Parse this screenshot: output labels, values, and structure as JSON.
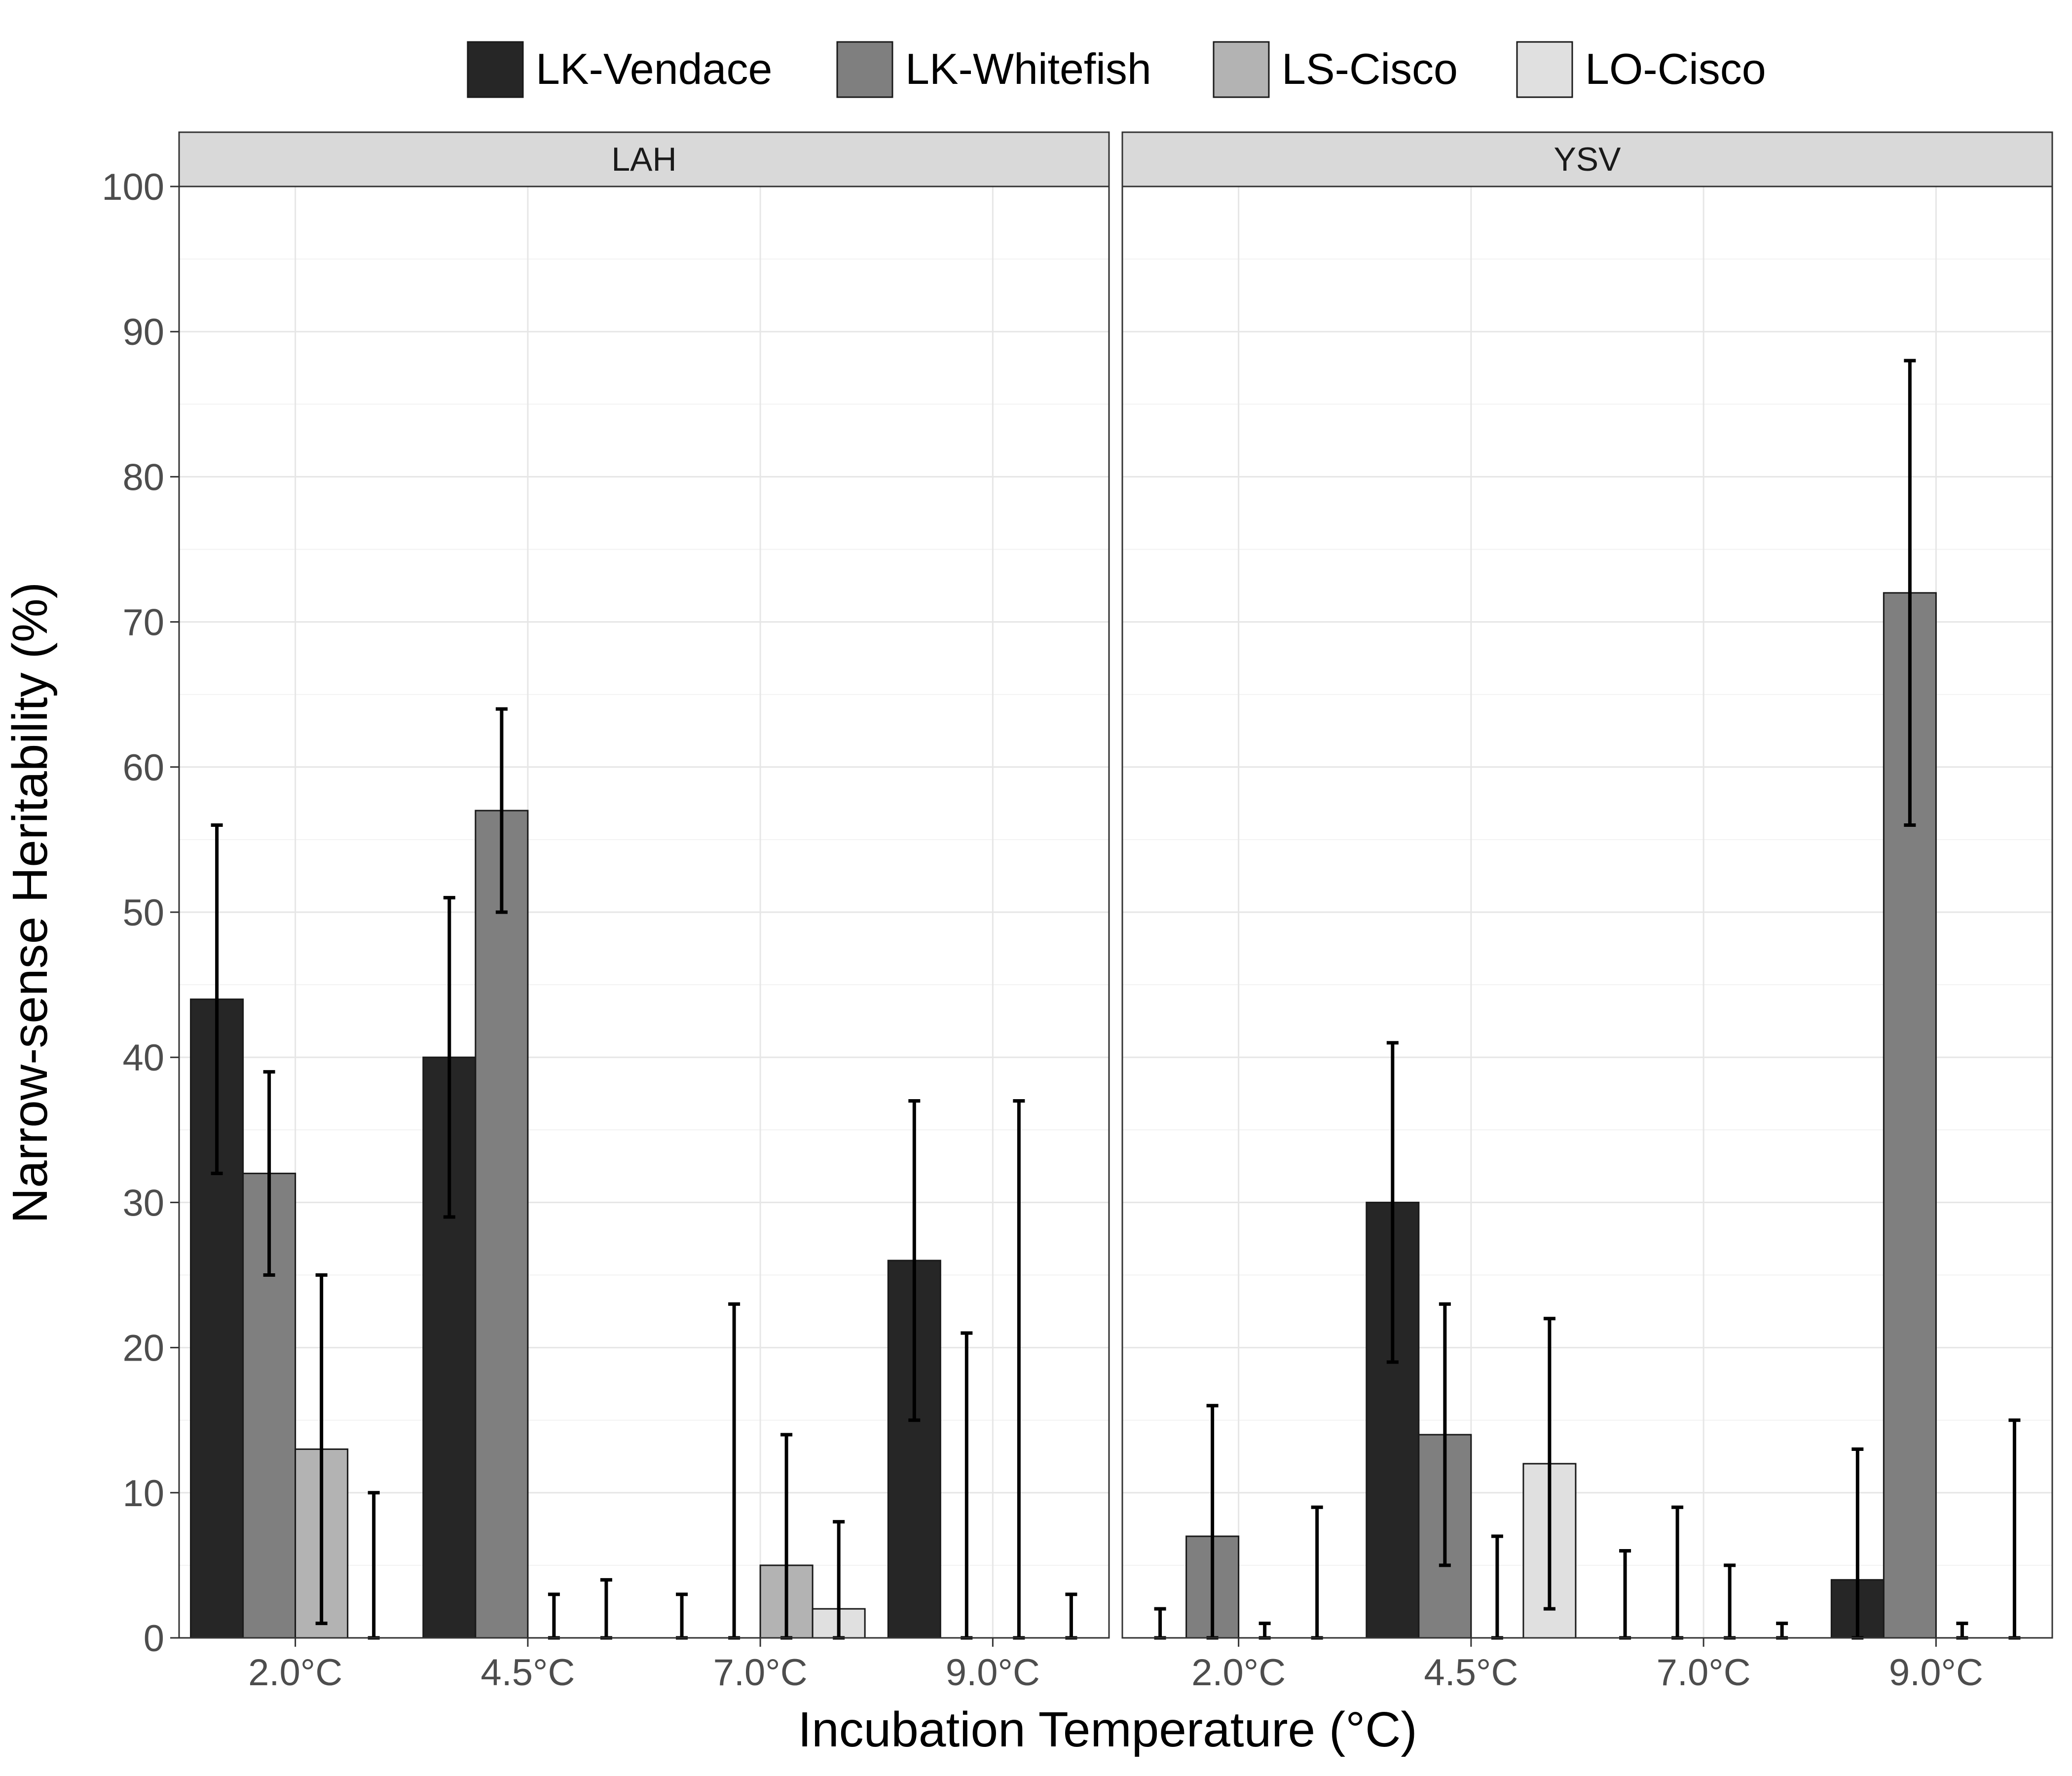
{
  "chart_data": {
    "type": "bar",
    "xlabel": "Incubation Temperature (°C)",
    "ylabel": "Narrow-sense Heritability (%)",
    "ylim": [
      0,
      100
    ],
    "yticks": [
      "0",
      "10",
      "20",
      "30",
      "40",
      "50",
      "60",
      "70",
      "80",
      "90",
      "100"
    ],
    "categories": [
      "2.0°C",
      "4.5°C",
      "7.0°C",
      "9.0°C"
    ],
    "legend_position": "top",
    "grid": true,
    "panels": [
      {
        "title": "LAH",
        "series": [
          {
            "name": "LK-Vendace",
            "color": "#262626",
            "values": [
              44,
              40,
              0,
              26
            ],
            "lower": [
              32,
              29,
              0,
              15
            ],
            "upper": [
              56,
              51,
              3,
              37
            ]
          },
          {
            "name": "LK-Whitefish",
            "color": "#7f7f7f",
            "values": [
              32,
              57,
              0,
              0
            ],
            "lower": [
              25,
              50,
              0,
              0
            ],
            "upper": [
              39,
              64,
              23,
              21
            ]
          },
          {
            "name": "LS-Cisco",
            "color": "#b3b3b3",
            "values": [
              13,
              0,
              5,
              0
            ],
            "lower": [
              1,
              0,
              0,
              0
            ],
            "upper": [
              25,
              3,
              14,
              37
            ]
          },
          {
            "name": "LO-Cisco",
            "color": "#e0e0e0",
            "values": [
              0,
              0,
              2,
              0
            ],
            "lower": [
              0,
              0,
              0,
              0
            ],
            "upper": [
              10,
              4,
              8,
              3
            ]
          }
        ]
      },
      {
        "title": "YSV",
        "series": [
          {
            "name": "LK-Vendace",
            "color": "#262626",
            "values": [
              0,
              30,
              0,
              4
            ],
            "lower": [
              0,
              19,
              0,
              0
            ],
            "upper": [
              2,
              41,
              6,
              13
            ]
          },
          {
            "name": "LK-Whitefish",
            "color": "#7f7f7f",
            "values": [
              7,
              14,
              0,
              72
            ],
            "lower": [
              0,
              5,
              0,
              56
            ],
            "upper": [
              16,
              23,
              9,
              88
            ]
          },
          {
            "name": "LS-Cisco",
            "color": "#b3b3b3",
            "values": [
              0,
              0,
              0,
              0
            ],
            "lower": [
              0,
              0,
              0,
              0
            ],
            "upper": [
              1,
              7,
              5,
              1
            ]
          },
          {
            "name": "LO-Cisco",
            "color": "#e0e0e0",
            "values": [
              0,
              12,
              0,
              0
            ],
            "lower": [
              0,
              2,
              0,
              0
            ],
            "upper": [
              9,
              22,
              1,
              15
            ]
          }
        ]
      }
    ]
  }
}
